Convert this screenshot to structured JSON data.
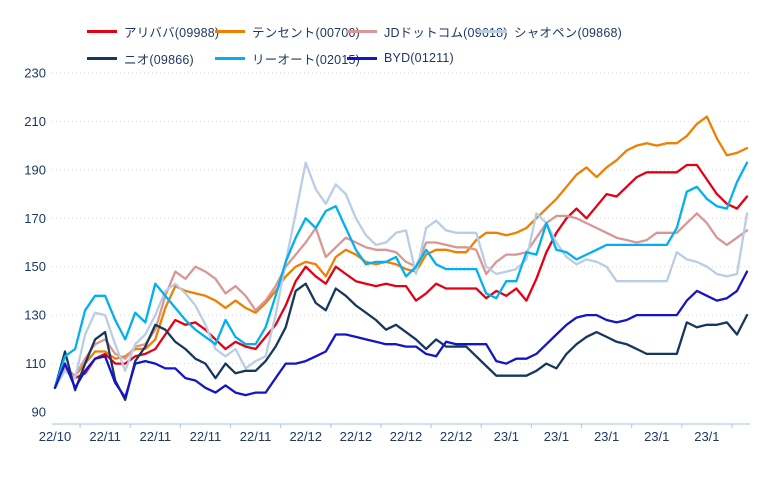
{
  "page": {
    "background": "#ffffff"
  },
  "colors": {
    "label_text": "#1f3864",
    "gridline": "#d6d6d6",
    "axis_line": "#b9cde5",
    "background": "#ffffff"
  },
  "chart_data": {
    "type": "line",
    "title": "",
    "xlabel": "",
    "ylabel": "",
    "ylim": [
      90,
      230
    ],
    "grid": true,
    "legend_position": "top",
    "y_ticks": [
      230,
      210,
      190,
      170,
      150,
      130,
      110,
      90
    ],
    "x_tick_labels": [
      "22/10",
      "22/11",
      "22/11",
      "22/11",
      "22/11",
      "22/12",
      "22/12",
      "22/12",
      "22/12",
      "23/1",
      "23/1",
      "23/1",
      "23/1",
      "23/1"
    ],
    "x_tick_every_n_points": 5,
    "n_points": 70,
    "index_base_note": "all series indexed to 100 at first point",
    "series": [
      {
        "name": "アリババ(09988)",
        "color": "#e60014",
        "values": [
          100,
          109,
          104,
          106,
          112,
          114,
          110,
          110,
          113,
          114,
          116,
          122,
          128,
          126,
          127,
          124,
          120,
          116,
          119,
          117,
          116,
          121,
          126,
          134,
          144,
          150,
          146,
          143,
          150,
          147,
          144,
          143,
          142,
          143,
          142,
          142,
          136,
          139,
          143,
          141,
          141,
          141,
          141,
          137,
          140,
          138,
          141,
          136,
          145,
          156,
          164,
          170,
          174,
          170,
          175,
          180,
          179,
          183,
          187,
          189,
          189,
          189,
          189,
          192,
          192,
          186,
          180,
          176,
          174,
          179
        ]
      },
      {
        "name": "テンセント(00700)",
        "color": "#f07f00",
        "values": [
          100,
          108,
          105,
          110,
          115,
          115,
          112,
          113,
          116,
          116,
          120,
          133,
          142,
          140,
          139,
          138,
          136,
          133,
          136,
          133,
          131,
          135,
          140,
          146,
          150,
          152,
          151,
          146,
          154,
          157,
          155,
          152,
          151,
          152,
          151,
          149,
          148,
          155,
          157,
          157,
          156,
          156,
          161,
          164,
          164,
          163,
          164,
          166,
          170,
          174,
          178,
          183,
          188,
          191,
          187,
          191,
          194,
          198,
          200,
          201,
          200,
          201,
          201,
          204,
          209,
          212,
          203,
          196,
          197,
          199
        ]
      },
      {
        "name": "JDドットコム(09618)",
        "color": "#d99694",
        "values": [
          100,
          108,
          105,
          112,
          118,
          120,
          114,
          112,
          117,
          118,
          124,
          138,
          148,
          145,
          150,
          148,
          145,
          139,
          142,
          138,
          132,
          136,
          142,
          150,
          155,
          160,
          166,
          154,
          158,
          162,
          160,
          158,
          157,
          157,
          156,
          152,
          150,
          160,
          160,
          159,
          158,
          158,
          157,
          147,
          152,
          155,
          155,
          156,
          162,
          168,
          171,
          171,
          170,
          168,
          166,
          164,
          162,
          161,
          160,
          161,
          164,
          164,
          164,
          168,
          172,
          168,
          162,
          159,
          162,
          165
        ]
      },
      {
        "name": "シャオペン(09868)",
        "color": "#b9cde5",
        "values": [
          100,
          107,
          104,
          122,
          131,
          130,
          118,
          107,
          118,
          122,
          130,
          140,
          143,
          139,
          134,
          126,
          116,
          113,
          116,
          108,
          111,
          113,
          130,
          152,
          172,
          193,
          182,
          176,
          184,
          180,
          170,
          163,
          159,
          160,
          164,
          165,
          147,
          166,
          169,
          165,
          164,
          164,
          164,
          150,
          147,
          148,
          149,
          153,
          172,
          168,
          160,
          154,
          151,
          153,
          152,
          150,
          144,
          144,
          144,
          144,
          144,
          144,
          156,
          153,
          152,
          150,
          147,
          146,
          147,
          172
        ]
      },
      {
        "name": "ニオ(09866)",
        "color": "#17375e",
        "values": [
          100,
          115,
          99,
          110,
          120,
          123,
          103,
          95,
          111,
          117,
          126,
          124,
          119,
          116,
          112,
          110,
          104,
          110,
          106,
          107,
          107,
          111,
          117,
          125,
          140,
          143,
          135,
          132,
          141,
          138,
          134,
          131,
          128,
          124,
          126,
          123,
          120,
          116,
          120,
          117,
          117,
          117,
          113,
          109,
          105,
          105,
          105,
          105,
          107,
          110,
          108,
          114,
          118,
          121,
          123,
          121,
          119,
          118,
          116,
          114,
          114,
          114,
          114,
          127,
          125,
          126,
          126,
          127,
          122,
          130
        ]
      },
      {
        "name": "リーオート(02015)",
        "color": "#00b0f0",
        "values": [
          100,
          113,
          116,
          132,
          138,
          138,
          128,
          120,
          131,
          127,
          143,
          138,
          133,
          128,
          124,
          121,
          118,
          128,
          121,
          118,
          118,
          125,
          138,
          152,
          162,
          170,
          166,
          173,
          175,
          166,
          157,
          151,
          152,
          152,
          154,
          146,
          150,
          157,
          151,
          149,
          149,
          149,
          149,
          139,
          137,
          144,
          144,
          156,
          155,
          168,
          157,
          156,
          153,
          155,
          157,
          159,
          159,
          159,
          159,
          159,
          159,
          159,
          166,
          181,
          183,
          178,
          175,
          174,
          185,
          193
        ]
      },
      {
        "name": "BYD(01211)",
        "color": "#1515c8",
        "values": [
          100,
          110,
          100,
          107,
          112,
          113,
          102,
          96,
          110,
          111,
          110,
          108,
          108,
          104,
          103,
          100,
          98,
          101,
          98,
          97,
          98,
          98,
          104,
          110,
          110,
          111,
          113,
          115,
          122,
          122,
          121,
          120,
          119,
          118,
          118,
          117,
          117,
          114,
          113,
          119,
          118,
          118,
          118,
          118,
          111,
          110,
          112,
          112,
          114,
          118,
          122,
          126,
          129,
          130,
          130,
          128,
          127,
          128,
          130,
          130,
          130,
          130,
          130,
          136,
          140,
          138,
          136,
          137,
          140,
          148
        ]
      }
    ]
  }
}
